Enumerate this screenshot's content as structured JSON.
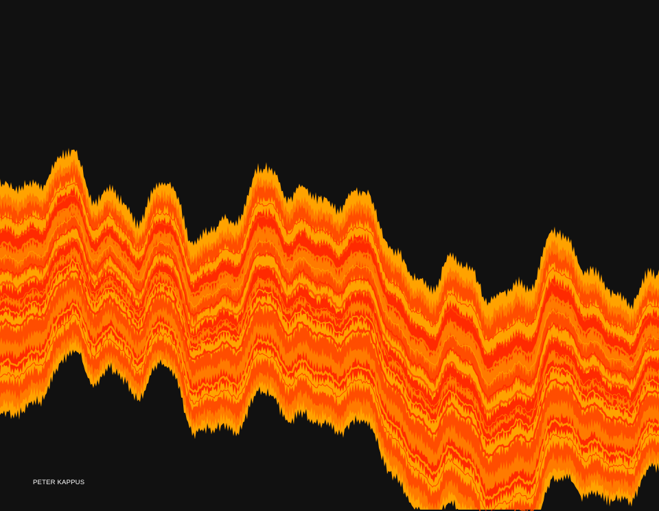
{
  "artwork": {
    "description_type": "generative-art",
    "background_color": "#111111",
    "palette": [
      "#ff2a00",
      "#ff4d00",
      "#ff7a00",
      "#ffa200"
    ],
    "signature": "PETER KAPPUS",
    "signature_color": "#ffffff"
  }
}
